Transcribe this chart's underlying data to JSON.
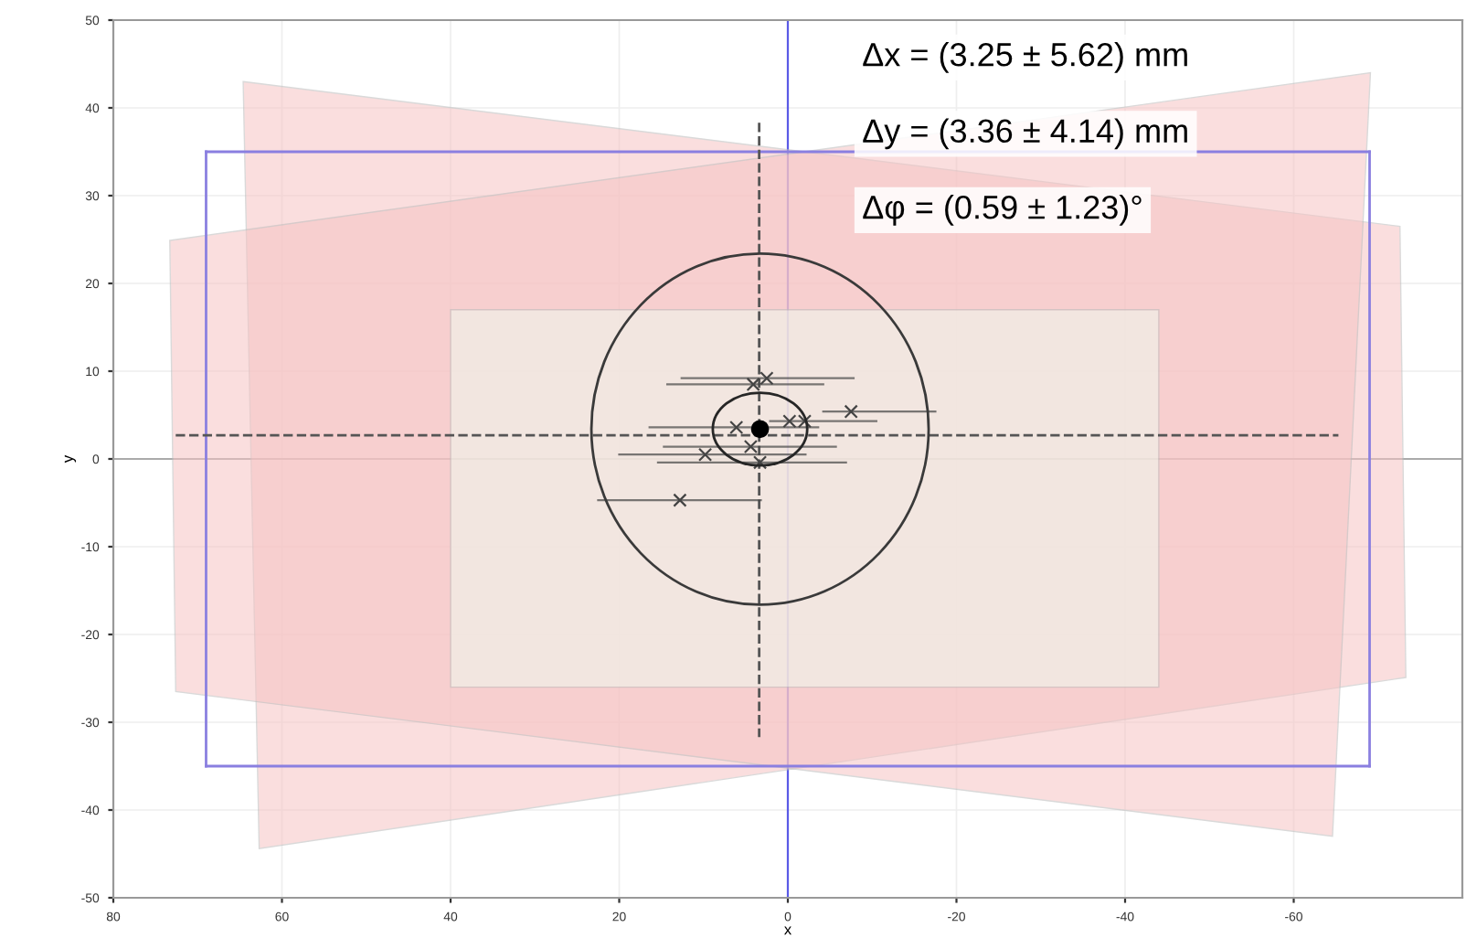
{
  "chart_data": {
    "type": "scatter",
    "xlabel": "x",
    "ylabel": "y",
    "xlim": [
      80,
      -80
    ],
    "ylim": [
      -50,
      50
    ],
    "xticks": [
      80,
      60,
      40,
      20,
      0,
      -20,
      -40,
      -60
    ],
    "yticks": [
      -50,
      -40,
      -30,
      -20,
      -10,
      0,
      10,
      20,
      30,
      40,
      50
    ],
    "grid": true,
    "ref_lines": [
      {
        "axis": "x",
        "value": 0,
        "color": "#5a5ae6"
      },
      {
        "axis": "y",
        "value": 0,
        "color": "#aaaaaa"
      }
    ],
    "annotations": [
      "Δx = (3.25 ± 5.62) mm",
      "Δy = (3.36 ± 4.14) mm",
      "Δφ = (0.59 ± 1.23)°"
    ],
    "series": [
      {
        "type": "area",
        "color": "#f6c4c4",
        "x": [
          64.6,
          -72.6,
          -73.3,
          62.7,
          64.6
        ],
        "values": [
          43.0,
          26.5,
          -24.9,
          -44.4,
          43.0
        ]
      },
      {
        "type": "area",
        "color": "#f6c4c4",
        "x": [
          73.3,
          -69.1,
          -64.6,
          72.6,
          73.3
        ],
        "values": [
          24.9,
          44.0,
          -43.0,
          -26.5,
          24.9
        ]
      },
      {
        "type": "line",
        "color": "#8a7fe0",
        "x": [
          69,
          -69
        ],
        "values": [
          35,
          35
        ]
      },
      {
        "type": "line",
        "color": "#8a7fe0",
        "x": [
          -69,
          -69
        ],
        "values": [
          35,
          -35
        ]
      },
      {
        "type": "line",
        "color": "#8a7fe0",
        "x": [
          -69,
          69
        ],
        "values": [
          -35,
          -35
        ]
      },
      {
        "type": "line",
        "color": "#8a7fe0",
        "x": [
          69,
          69
        ],
        "values": [
          -35,
          35
        ]
      },
      {
        "type": "area",
        "color": "#effaef",
        "x": [
          40,
          -44,
          -44,
          40,
          40
        ],
        "values": [
          17,
          17,
          -26,
          -26,
          17
        ]
      },
      {
        "type": "line",
        "color": "#555555",
        "x": [
          72.6,
          -65.3
        ],
        "values": [
          2.7,
          2.7
        ],
        "line_style": "dashed"
      },
      {
        "type": "line",
        "color": "#555555",
        "x": [
          3.4,
          3.4
        ],
        "values": [
          38.3,
          -31.7
        ],
        "line_style": "dashed"
      },
      {
        "color": "#444444",
        "marker": "cross",
        "x": [
          2.5,
          4.1,
          -7.5,
          -0.2,
          -2.0,
          6.1,
          4.4,
          9.8,
          3.3,
          12.8
        ],
        "values": [
          9.2,
          8.5,
          5.4,
          4.3,
          4.3,
          3.6,
          1.4,
          0.5,
          -0.4,
          -4.7
        ],
        "xerrors": [
          [
            -7.8,
            12.6
          ],
          [
            -4.2,
            14.3
          ],
          [
            -17.5,
            -4.2
          ],
          null,
          [
            -10.5,
            2.1
          ],
          [
            -3.6,
            16.4
          ],
          [
            -5.7,
            14.7
          ],
          [
            -2.1,
            20.0
          ],
          [
            -6.9,
            15.4
          ],
          [
            3.2,
            22.5
          ]
        ]
      },
      {
        "color": "#000000",
        "marker": "circle",
        "x": [
          3.3
        ],
        "values": [
          3.4
        ]
      }
    ]
  }
}
